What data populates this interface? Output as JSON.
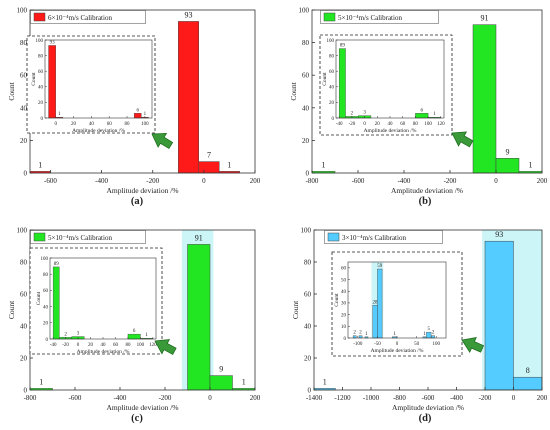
{
  "chart_data": [
    {
      "panel": "(a)",
      "type": "bar",
      "legend": "6×10⁻⁴m/s Calibration",
      "xlabel": "Amplitude deviation /%",
      "ylabel": "Count",
      "xlim": [
        -680,
        200
      ],
      "ylim": [
        0,
        100
      ],
      "xticks": [
        "-600",
        "-400",
        "-200",
        "0",
        "200"
      ],
      "yticks": [
        "0",
        "20",
        "40",
        "60",
        "80",
        "100"
      ],
      "bars": [
        {
          "x0": -680,
          "x1": -600,
          "value": 1,
          "label": "1"
        },
        {
          "x0": -100,
          "x1": -20,
          "value": 93,
          "label": "93"
        },
        {
          "x0": -20,
          "x1": 60,
          "value": 7,
          "label": "7"
        },
        {
          "x0": 60,
          "x1": 140,
          "value": 1,
          "label": "1"
        }
      ],
      "color": "#ff1a1a",
      "highlight": null,
      "inset": {
        "xlabel": "Amplitude deviation /%",
        "ylabel": "Count",
        "xlim": [
          -12,
          108
        ],
        "ylim": [
          0,
          100
        ],
        "xticks": [
          "0",
          "20",
          "40",
          "60",
          "80",
          "100"
        ],
        "yticks": [
          "0",
          "20",
          "40",
          "60",
          "80",
          "100"
        ],
        "bars": [
          {
            "x0": -8,
            "x1": 0,
            "value": 93,
            "label": "93"
          },
          {
            "x0": 0,
            "x1": 8,
            "value": 1,
            "label": "1"
          },
          {
            "x0": 88,
            "x1": 96,
            "value": 6,
            "label": "6"
          },
          {
            "x0": 96,
            "x1": 104,
            "value": 1,
            "label": "1"
          }
        ],
        "highlight": null
      }
    },
    {
      "panel": "(b)",
      "type": "bar",
      "legend": "5×10⁻⁴m/s Calibration",
      "xlabel": "Amplitude deviation /%",
      "ylabel": "Count",
      "xlim": [
        -800,
        200
      ],
      "ylim": [
        0,
        100
      ],
      "xticks": [
        "-800",
        "-600",
        "-400",
        "-200",
        "0",
        "200"
      ],
      "yticks": [
        "0",
        "20",
        "40",
        "60",
        "80",
        "100"
      ],
      "bars": [
        {
          "x0": -800,
          "x1": -700,
          "value": 1,
          "label": "1"
        },
        {
          "x0": -100,
          "x1": 0,
          "value": 91,
          "label": "91"
        },
        {
          "x0": 0,
          "x1": 100,
          "value": 9,
          "label": "9"
        },
        {
          "x0": 100,
          "x1": 200,
          "value": 1,
          "label": "1"
        }
      ],
      "color": "#22e622",
      "highlight": null,
      "inset": {
        "xlabel": "Amplitude deviation /%",
        "ylabel": "Count",
        "xlim": [
          -45,
          125
        ],
        "ylim": [
          0,
          100
        ],
        "xticks": [
          "-40",
          "-20",
          "0",
          "20",
          "40",
          "60",
          "80",
          "100",
          "120"
        ],
        "yticks": [
          "0",
          "20",
          "40",
          "60",
          "80",
          "100"
        ],
        "bars": [
          {
            "x0": -40,
            "x1": -30,
            "value": 89,
            "label": "89"
          },
          {
            "x0": -30,
            "x1": -10,
            "value": 2,
            "label": "2"
          },
          {
            "x0": -10,
            "x1": 10,
            "value": 3,
            "label": "3"
          },
          {
            "x0": 80,
            "x1": 100,
            "value": 6,
            "label": "6"
          },
          {
            "x0": 100,
            "x1": 120,
            "value": 1,
            "label": "1"
          }
        ],
        "highlight": null
      }
    },
    {
      "panel": "(c)",
      "type": "bar",
      "legend": "5×10⁻⁴m/s Calibration",
      "xlabel": "Amplitude deviation /%",
      "ylabel": "Count",
      "xlim": [
        -800,
        200
      ],
      "ylim": [
        0,
        100
      ],
      "xticks": [
        "-800",
        "-600",
        "-400",
        "-200",
        "0",
        "200"
      ],
      "yticks": [
        "0",
        "20",
        "40",
        "60",
        "80",
        "100"
      ],
      "bars": [
        {
          "x0": -800,
          "x1": -700,
          "value": 1,
          "label": "1"
        },
        {
          "x0": -100,
          "x1": 0,
          "value": 91,
          "label": "91"
        },
        {
          "x0": 0,
          "x1": 100,
          "value": 9,
          "label": "9"
        },
        {
          "x0": 100,
          "x1": 200,
          "value": 1,
          "label": "1"
        }
      ],
      "color": "#22e622",
      "highlight": [
        -125,
        15
      ],
      "inset": {
        "xlabel": "Amplitude deviation /%",
        "ylabel": "Count",
        "xlim": [
          -45,
          125
        ],
        "ylim": [
          0,
          100
        ],
        "xticks": [
          "-40",
          "-20",
          "0",
          "20",
          "40",
          "60",
          "80",
          "100",
          "120"
        ],
        "yticks": [
          "0",
          "20",
          "40",
          "60",
          "80",
          "100"
        ],
        "bars": [
          {
            "x0": -40,
            "x1": -30,
            "value": 89,
            "label": "89"
          },
          {
            "x0": -30,
            "x1": -10,
            "value": 2,
            "label": "2"
          },
          {
            "x0": -10,
            "x1": 10,
            "value": 3,
            "label": "3"
          },
          {
            "x0": 80,
            "x1": 100,
            "value": 6,
            "label": "6"
          },
          {
            "x0": 100,
            "x1": 120,
            "value": 1,
            "label": "1"
          }
        ],
        "highlight": null
      }
    },
    {
      "panel": "(d)",
      "type": "bar",
      "legend": "3×10⁻⁴m/s Calibration",
      "xlabel": "Amplitude deviation /%",
      "ylabel": "Count",
      "xlim": [
        -1400,
        200
      ],
      "ylim": [
        0,
        100
      ],
      "xticks": [
        "-1400",
        "-1200",
        "-1000",
        "-800",
        "-600",
        "-400",
        "-200",
        "0",
        "200"
      ],
      "yticks": [
        "0",
        "20",
        "40",
        "60",
        "80",
        "100"
      ],
      "bars": [
        {
          "x0": -1400,
          "x1": -1250,
          "value": 1,
          "label": "1"
        },
        {
          "x0": -200,
          "x1": 0,
          "value": 93,
          "label": "93"
        },
        {
          "x0": 0,
          "x1": 200,
          "value": 8,
          "label": "8"
        }
      ],
      "color": "#55ccff",
      "highlight": [
        -220,
        200
      ],
      "inset": {
        "xlabel": "Amplitude deviation /%",
        "ylabel": "Count",
        "xlim": [
          -125,
          125
        ],
        "ylim": [
          0,
          65
        ],
        "xticks": [
          "-100",
          "-50",
          "0",
          "50",
          "100"
        ],
        "yticks": [
          "0",
          "10",
          "20",
          "30",
          "40",
          "50",
          "60"
        ],
        "bars": [
          {
            "x0": -112,
            "x1": -104,
            "value": 2,
            "label": "2"
          },
          {
            "x0": -97,
            "x1": -89,
            "value": 2,
            "label": "2"
          },
          {
            "x0": -82,
            "x1": -74,
            "value": 1,
            "label": "1"
          },
          {
            "x0": -62,
            "x1": -50,
            "value": 28,
            "label": "28"
          },
          {
            "x0": -50,
            "x1": -38,
            "value": 59,
            "label": "59"
          },
          {
            "x0": -12,
            "x1": 0,
            "value": 1,
            "label": "1"
          },
          {
            "x0": 66,
            "x1": 74,
            "value": 1,
            "label": "1"
          },
          {
            "x0": 75,
            "x1": 87,
            "value": 5,
            "label": "5"
          },
          {
            "x0": 88,
            "x1": 96,
            "value": 2,
            "label": "2"
          }
        ],
        "highlight": [
          -65,
          -35
        ]
      }
    }
  ]
}
